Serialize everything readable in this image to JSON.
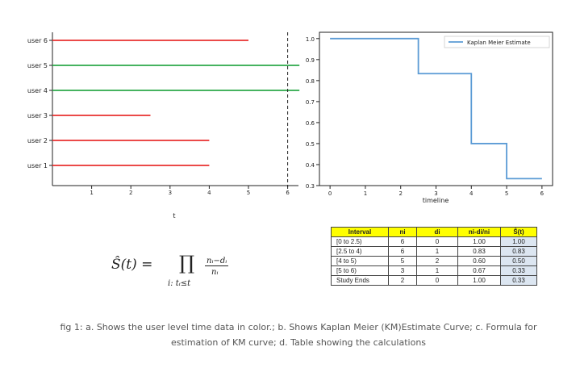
{
  "chart_data": [
    {
      "type": "line",
      "title": "",
      "xlabel": "t",
      "ylabel": "",
      "xlim": [
        0,
        6.2
      ],
      "x_ticks": [
        1,
        2,
        3,
        4,
        5,
        6
      ],
      "categories": [
        "user 1",
        "user 2",
        "user 3",
        "user 4",
        "user 5",
        "user 6"
      ],
      "series": [
        {
          "category": "user 1",
          "start": 0,
          "end": 4,
          "color": "#e8312f"
        },
        {
          "category": "user 2",
          "start": 0,
          "end": 4,
          "color": "#e8312f"
        },
        {
          "category": "user 3",
          "start": 0,
          "end": 2.5,
          "color": "#e8312f"
        },
        {
          "category": "user 4",
          "start": 0,
          "end": 6.3,
          "color": "#2ca84a"
        },
        {
          "category": "user 5",
          "start": 0,
          "end": 6.3,
          "color": "#2ca84a"
        },
        {
          "category": "user 6",
          "start": 0,
          "end": 5,
          "color": "#e8312f"
        }
      ],
      "reference_line": {
        "x": 6,
        "style": "dashed"
      },
      "grid": false
    },
    {
      "type": "line",
      "title": "",
      "xlabel": "timeline",
      "ylabel": "",
      "xlim": [
        -0.3,
        6.3
      ],
      "ylim": [
        0.3,
        1.03
      ],
      "x_ticks": [
        0,
        1,
        2,
        3,
        4,
        5,
        6
      ],
      "y_ticks": [
        "0.3",
        "0.4",
        "0.5",
        "0.6",
        "0.7",
        "0.8",
        "0.9",
        "1.0"
      ],
      "series": [
        {
          "name": "Kaplan Meier Estimate",
          "color": "#5b9bd5",
          "step": true,
          "x": [
            0,
            1.7,
            2.5,
            4,
            5,
            6
          ],
          "y": [
            1.0,
            1.0,
            0.833,
            0.5,
            0.333,
            0.333
          ]
        }
      ],
      "legend": "top-right",
      "grid": false
    }
  ],
  "formula": {
    "lhs": "Ŝ(t) = ",
    "product": "∏",
    "subscript": "i: tᵢ≤t",
    "numerator": "nᵢ−dᵢ",
    "denominator": "nᵢ"
  },
  "table": {
    "headers": [
      "Interval",
      "ni",
      "di",
      "ni-di/ni",
      "Ŝ(t)"
    ],
    "rows": [
      [
        "[0 to 2.5)",
        "6",
        "0",
        "1.00",
        "1.00"
      ],
      [
        "[2.5 to 4)",
        "6",
        "1",
        "0.83",
        "0.83"
      ],
      [
        "[4 to 5)",
        "5",
        "2",
        "0.60",
        "0.50"
      ],
      [
        "[5 to 6)",
        "3",
        "1",
        "0.67",
        "0.33"
      ],
      [
        "Study Ends",
        "2",
        "0",
        "1.00",
        "0.33"
      ]
    ]
  },
  "caption": "fig 1: a. Shows the user level time data in color.; b. Shows Kaplan Meier (KM)Estimate Curve; c. Formula for estimation of KM curve; d. Table showing the calculations"
}
